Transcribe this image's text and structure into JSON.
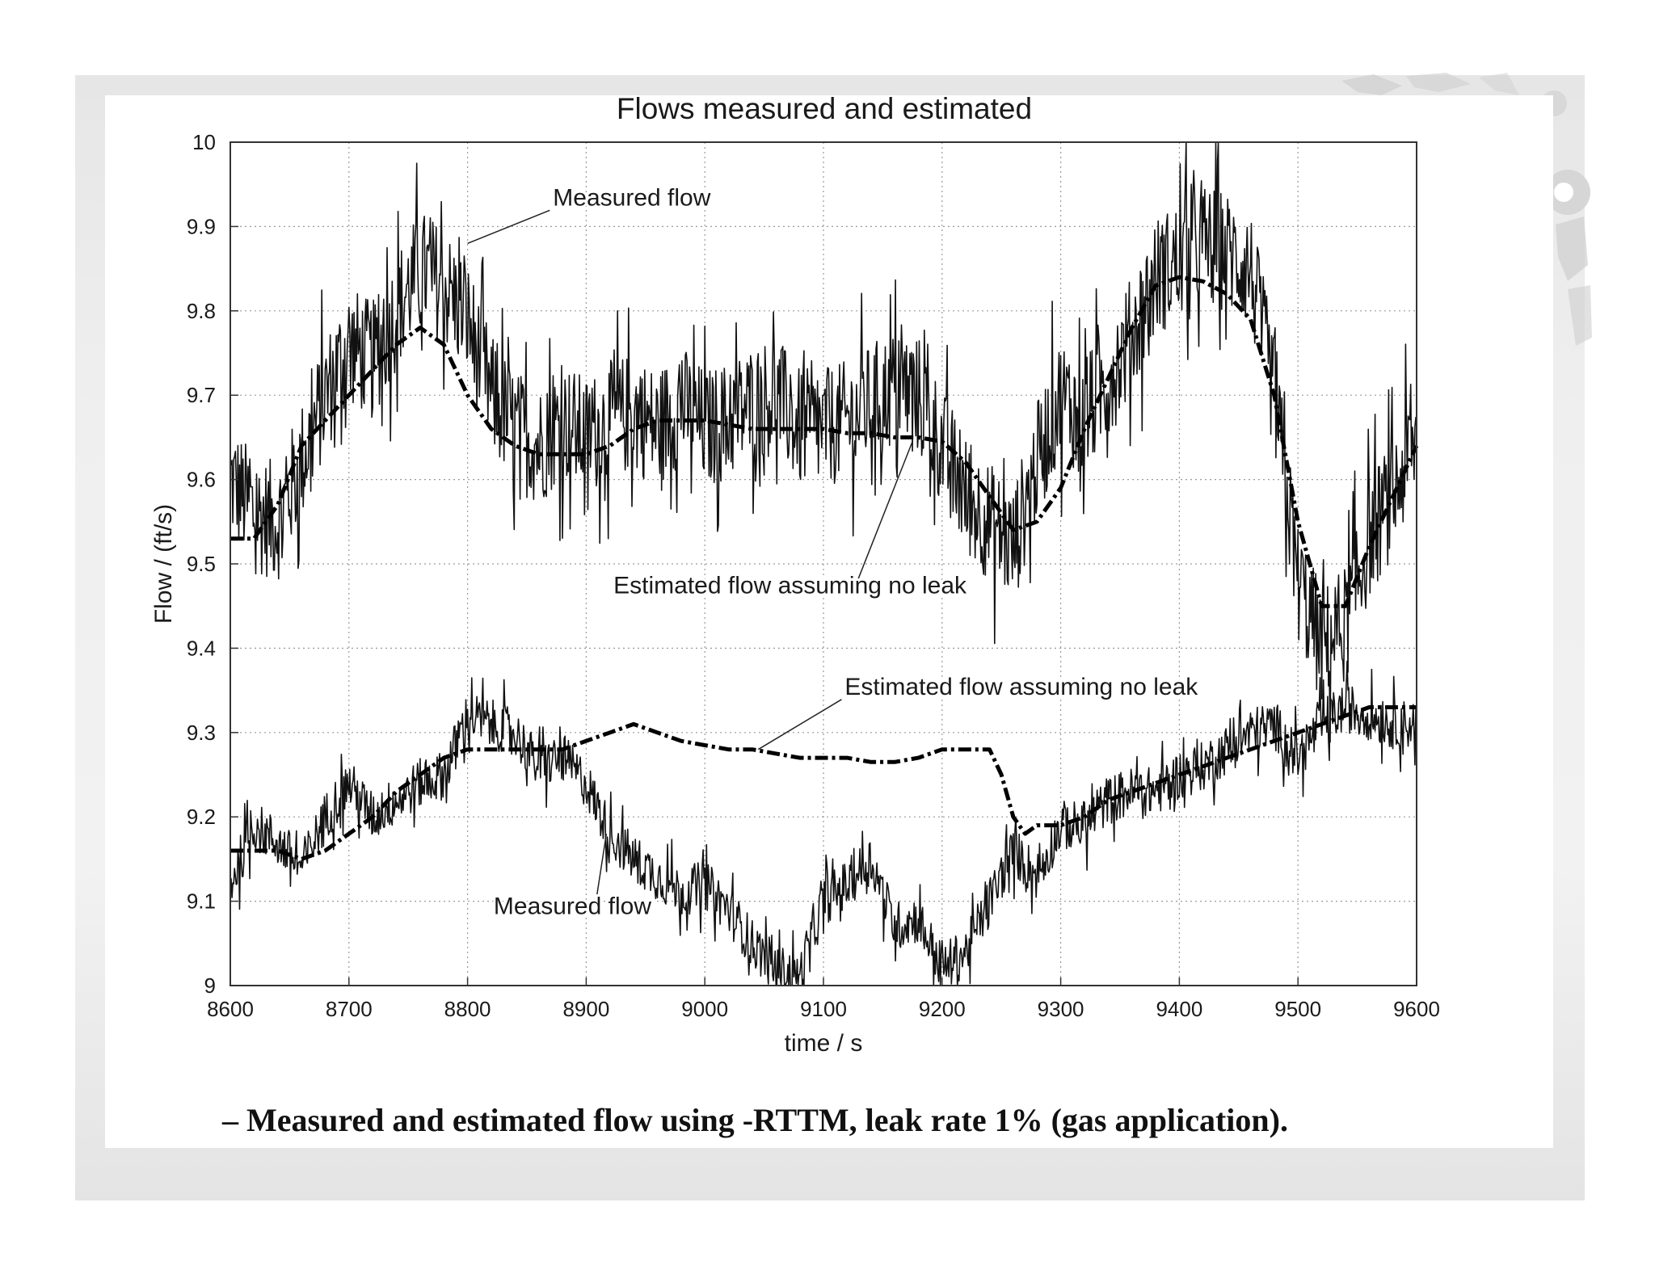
{
  "caption": "– Measured and estimated flow using -RTTM, leak rate 1% (gas application).",
  "chart_data": {
    "type": "line",
    "title": "Flows measured and estimated",
    "xlabel": "time / s",
    "ylabel": "Flow / (ft/s)",
    "xlim": [
      8600,
      9600
    ],
    "ylim": [
      9,
      10
    ],
    "grid": true,
    "x_ticks": [
      "8600",
      "8700",
      "8800",
      "8900",
      "9000",
      "9100",
      "9200",
      "9300",
      "9400",
      "9500",
      "9600"
    ],
    "y_ticks": [
      "9",
      "9.1",
      "9.2",
      "9.3",
      "9.4",
      "9.5",
      "9.6",
      "9.7",
      "9.8",
      "9.9",
      "10"
    ],
    "series": [
      {
        "name": "Measured flow",
        "style": "solid-noisy",
        "x": [
          8600,
          8620,
          8640,
          8660,
          8680,
          8700,
          8720,
          8740,
          8760,
          8780,
          8800,
          8820,
          8840,
          8860,
          8880,
          8900,
          8920,
          8940,
          8960,
          8980,
          9000,
          9020,
          9040,
          9060,
          9080,
          9100,
          9120,
          9140,
          9160,
          9180,
          9200,
          9220,
          9240,
          9260,
          9280,
          9300,
          9320,
          9340,
          9360,
          9380,
          9400,
          9420,
          9440,
          9460,
          9480,
          9500,
          9520,
          9540,
          9560,
          9580,
          9600
        ],
        "y": [
          9.6,
          9.56,
          9.55,
          9.62,
          9.7,
          9.76,
          9.74,
          9.8,
          9.85,
          9.83,
          9.79,
          9.7,
          9.66,
          9.64,
          9.67,
          9.65,
          9.67,
          9.68,
          9.66,
          9.69,
          9.66,
          9.67,
          9.69,
          9.7,
          9.66,
          9.66,
          9.67,
          9.69,
          9.71,
          9.7,
          9.64,
          9.58,
          9.55,
          9.52,
          9.62,
          9.7,
          9.67,
          9.72,
          9.77,
          9.84,
          9.86,
          9.88,
          9.87,
          9.85,
          9.7,
          9.48,
          9.4,
          9.43,
          9.53,
          9.58,
          9.65
        ]
      },
      {
        "name": "Estimated flow assuming no leak",
        "style": "dash-dot",
        "x": [
          8600,
          8620,
          8640,
          8660,
          8680,
          8700,
          8720,
          8740,
          8760,
          8780,
          8800,
          8820,
          8840,
          8860,
          8880,
          8900,
          8920,
          8940,
          8960,
          8980,
          9000,
          9020,
          9040,
          9060,
          9080,
          9100,
          9120,
          9140,
          9160,
          9180,
          9200,
          9220,
          9240,
          9260,
          9280,
          9300,
          9320,
          9340,
          9360,
          9380,
          9400,
          9420,
          9440,
          9460,
          9480,
          9500,
          9520,
          9540,
          9560,
          9580,
          9600
        ],
        "y": [
          9.53,
          9.53,
          9.57,
          9.64,
          9.67,
          9.7,
          9.73,
          9.76,
          9.78,
          9.76,
          9.7,
          9.66,
          9.64,
          9.63,
          9.63,
          9.63,
          9.64,
          9.66,
          9.67,
          9.67,
          9.67,
          9.665,
          9.66,
          9.66,
          9.66,
          9.66,
          9.655,
          9.655,
          9.65,
          9.65,
          9.645,
          9.62,
          9.58,
          9.54,
          9.55,
          9.59,
          9.66,
          9.72,
          9.78,
          9.83,
          9.84,
          9.835,
          9.82,
          9.79,
          9.7,
          9.55,
          9.45,
          9.45,
          9.52,
          9.58,
          9.64
        ]
      },
      {
        "name": "Measured flow",
        "style": "solid-noisy",
        "x": [
          8600,
          8620,
          8640,
          8660,
          8680,
          8700,
          8720,
          8740,
          8760,
          8780,
          8800,
          8820,
          8840,
          8860,
          8880,
          8900,
          8920,
          8940,
          8960,
          8980,
          9000,
          9020,
          9040,
          9060,
          9080,
          9100,
          9120,
          9140,
          9160,
          9180,
          9200,
          9220,
          9240,
          9260,
          9280,
          9300,
          9320,
          9340,
          9360,
          9380,
          9400,
          9420,
          9440,
          9460,
          9480,
          9500,
          9520,
          9540,
          9560,
          9580,
          9600
        ],
        "y": [
          9.12,
          9.19,
          9.17,
          9.14,
          9.2,
          9.24,
          9.2,
          9.22,
          9.24,
          9.25,
          9.32,
          9.31,
          9.3,
          9.26,
          9.27,
          9.24,
          9.18,
          9.15,
          9.13,
          9.11,
          9.12,
          9.09,
          9.05,
          9.02,
          9.01,
          9.1,
          9.12,
          9.15,
          9.07,
          9.08,
          9.02,
          9.04,
          9.1,
          9.16,
          9.13,
          9.19,
          9.19,
          9.22,
          9.23,
          9.23,
          9.25,
          9.26,
          9.28,
          9.3,
          9.31,
          9.27,
          9.31,
          9.33,
          9.32,
          9.31,
          9.31
        ]
      },
      {
        "name": "Estimated flow assuming no leak",
        "style": "dash-dot",
        "x": [
          8600,
          8620,
          8640,
          8660,
          8680,
          8700,
          8720,
          8740,
          8760,
          8780,
          8800,
          8820,
          8840,
          8860,
          8880,
          8900,
          8920,
          8940,
          8960,
          8980,
          9000,
          9020,
          9040,
          9060,
          9080,
          9100,
          9120,
          9140,
          9160,
          9180,
          9200,
          9220,
          9240,
          9250,
          9260,
          9270,
          9280,
          9300,
          9320,
          9340,
          9360,
          9380,
          9400,
          9420,
          9440,
          9460,
          9480,
          9500,
          9520,
          9540,
          9560,
          9580,
          9600
        ],
        "y": [
          9.16,
          9.16,
          9.16,
          9.15,
          9.16,
          9.18,
          9.2,
          9.23,
          9.25,
          9.27,
          9.28,
          9.28,
          9.28,
          9.28,
          9.28,
          9.29,
          9.3,
          9.31,
          9.3,
          9.29,
          9.285,
          9.28,
          9.28,
          9.275,
          9.27,
          9.27,
          9.27,
          9.265,
          9.265,
          9.27,
          9.28,
          9.28,
          9.28,
          9.25,
          9.2,
          9.18,
          9.19,
          9.19,
          9.2,
          9.22,
          9.23,
          9.24,
          9.25,
          9.26,
          9.27,
          9.28,
          9.29,
          9.3,
          9.31,
          9.32,
          9.33,
          9.33,
          9.33
        ]
      }
    ],
    "annotations": [
      {
        "text": "Measured flow",
        "x": 8872,
        "y": 9.925,
        "arrow_to_x": 8800,
        "arrow_to_y": 9.88
      },
      {
        "text": "Estimated flow assuming no leak",
        "x": 8923,
        "y": 9.465,
        "arrow_to_x": 9175,
        "arrow_to_y": 9.645
      },
      {
        "text": "Estimated flow assuming no leak",
        "x": 9118,
        "y": 9.345,
        "arrow_to_x": 9045,
        "arrow_to_y": 9.28
      },
      {
        "text": "Measured flow",
        "x": 8822,
        "y": 9.085,
        "arrow_to_x": 8917,
        "arrow_to_y": 9.18
      }
    ]
  }
}
